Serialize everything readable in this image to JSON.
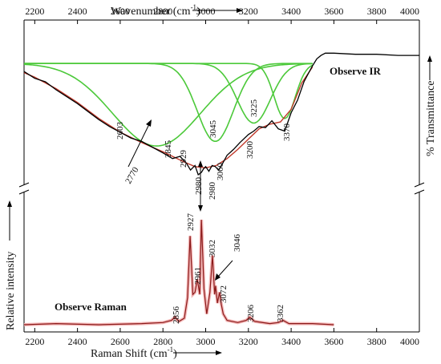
{
  "chart_data": {
    "type": "line",
    "x_range": [
      2150,
      4000
    ],
    "x_ticks": [
      2200,
      2400,
      2600,
      2800,
      3000,
      3200,
      3400,
      3600,
      3800,
      4000
    ],
    "top_axis": {
      "label": "Wavenumber (cm",
      "sup": "-1",
      "close": ")"
    },
    "bottom_axis": {
      "label": "Raman Shift (cm",
      "sup": "-1",
      "close": ")"
    },
    "right_axis_label": "% Transmittance",
    "left_axis_label": "Relative intensity",
    "ir": {
      "title": "Observe IR",
      "spectrum": {
        "x": [
          2150,
          2200,
          2250,
          2300,
          2350,
          2400,
          2450,
          2500,
          2550,
          2600,
          2650,
          2700,
          2750,
          2800,
          2845,
          2880,
          2910,
          2929,
          2950,
          2965,
          2980,
          2990,
          3000,
          3015,
          3030,
          3045,
          3060,
          3080,
          3100,
          3130,
          3160,
          3200,
          3225,
          3250,
          3280,
          3310,
          3340,
          3370,
          3400,
          3430,
          3460,
          3480,
          3500,
          3520,
          3540,
          3560,
          3600,
          3700,
          3800,
          3900,
          4000
        ],
        "y": [
          0.88,
          0.82,
          0.79,
          0.72,
          0.66,
          0.6,
          0.53,
          0.46,
          0.4,
          0.35,
          0.3,
          0.27,
          0.22,
          0.17,
          0.12,
          0.14,
          0.08,
          0.02,
          0.06,
          -0.02,
          0.0,
          0.03,
          0.05,
          0.01,
          0.06,
          0.05,
          0.02,
          0.08,
          0.15,
          0.2,
          0.26,
          0.33,
          0.36,
          0.4,
          0.39,
          0.45,
          0.38,
          0.36,
          0.52,
          0.63,
          0.79,
          0.86,
          0.93,
          0.99,
          1.02,
          1.04,
          1.04,
          1.03,
          1.03,
          1.02,
          1.02
        ]
      },
      "fit": {
        "x": [
          2150,
          2200,
          2300,
          2400,
          2500,
          2600,
          2700,
          2800,
          2900,
          2950,
          3000,
          3050,
          3100,
          3150,
          3200,
          3250,
          3300,
          3350,
          3400,
          3450,
          3500
        ],
        "y": [
          0.87,
          0.83,
          0.73,
          0.61,
          0.47,
          0.35,
          0.26,
          0.18,
          0.09,
          0.05,
          0.04,
          0.06,
          0.12,
          0.2,
          0.29,
          0.38,
          0.42,
          0.44,
          0.55,
          0.78,
          0.92
        ]
      },
      "components": [
        {
          "center": 2770,
          "width": 290,
          "depth": 0.72
        },
        {
          "center": 3045,
          "width": 120,
          "depth": 0.68
        },
        {
          "center": 3225,
          "width": 110,
          "depth": 0.52
        },
        {
          "center": 3370,
          "width": 70,
          "depth": 0.48
        }
      ],
      "baseline": 0.95,
      "labels": [
        "2603",
        "2770",
        "2845",
        "2929",
        "2980",
        "3045",
        "3060",
        "3200",
        "3225",
        "3370"
      ]
    },
    "raman": {
      "title": "Observe Raman",
      "spectrum": {
        "x": [
          2150,
          2300,
          2500,
          2700,
          2800,
          2840,
          2856,
          2875,
          2900,
          2915,
          2927,
          2940,
          2950,
          2961,
          2972,
          2980,
          2992,
          3005,
          3020,
          3032,
          3042,
          3046,
          3055,
          3065,
          3072,
          3082,
          3100,
          3150,
          3190,
          3206,
          3230,
          3300,
          3340,
          3362,
          3390,
          3500,
          3600
        ],
        "y": [
          0.0,
          0.01,
          0.0,
          0.01,
          0.02,
          0.04,
          0.07,
          0.03,
          0.06,
          0.25,
          0.82,
          0.28,
          0.3,
          0.42,
          0.28,
          0.97,
          0.33,
          0.1,
          0.3,
          0.64,
          0.28,
          0.36,
          0.2,
          0.3,
          0.2,
          0.1,
          0.04,
          0.02,
          0.04,
          0.07,
          0.03,
          0.01,
          0.02,
          0.04,
          0.01,
          0.01,
          0.0
        ]
      },
      "labels": [
        "2856",
        "2927",
        "2961",
        "2980",
        "3032",
        "3046",
        "3072",
        "3206",
        "3362"
      ]
    }
  }
}
